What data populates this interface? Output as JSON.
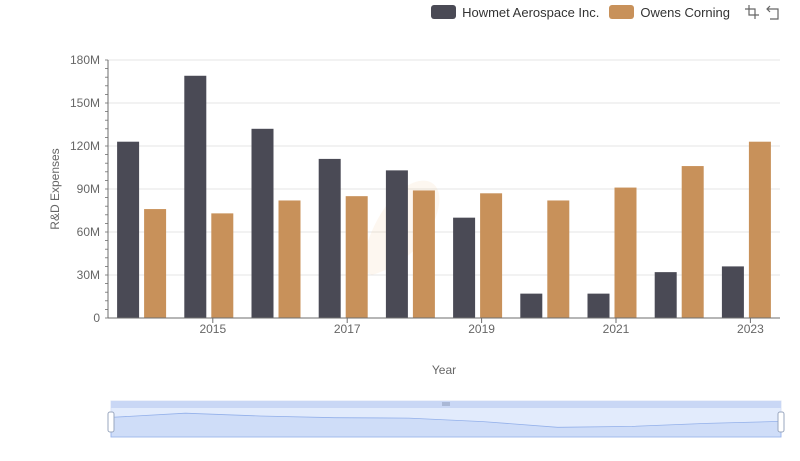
{
  "colors": {
    "howmet": "#4a4a55",
    "owens": "#c8915a",
    "grid": "#e6e6e6",
    "axis": "#6e6e6e",
    "zoom_fill": "#d6e2fb",
    "zoom_line": "#93b0ea"
  },
  "legend": {
    "items": [
      "Howmet Aerospace Inc.",
      "Owens Corning"
    ]
  },
  "toolbox": {
    "icons": [
      "zoom-icon",
      "restore-icon"
    ]
  },
  "chart_data": {
    "type": "bar",
    "categories": [
      2014,
      2015,
      2016,
      2017,
      2018,
      2019,
      2020,
      2021,
      2022,
      2023
    ],
    "x_tick_labels": [
      "2015",
      "2017",
      "2019",
      "2021",
      "2023"
    ],
    "series": [
      {
        "name": "Howmet Aerospace Inc.",
        "values": [
          123000000,
          169000000,
          132000000,
          111000000,
          103000000,
          70000000,
          17000000,
          17000000,
          32000000,
          36000000
        ]
      },
      {
        "name": "Owens Corning",
        "values": [
          76000000,
          73000000,
          82000000,
          85000000,
          89000000,
          87000000,
          82000000,
          91000000,
          106000000,
          123000000
        ]
      }
    ],
    "xlabel": "Year",
    "ylabel": "R&D Expenses",
    "ylim": [
      0,
      180000000
    ],
    "y_ticks": [
      "0",
      "30M",
      "60M",
      "90M",
      "120M",
      "150M",
      "180M"
    ],
    "grid": true,
    "legend_position": "top-right"
  }
}
